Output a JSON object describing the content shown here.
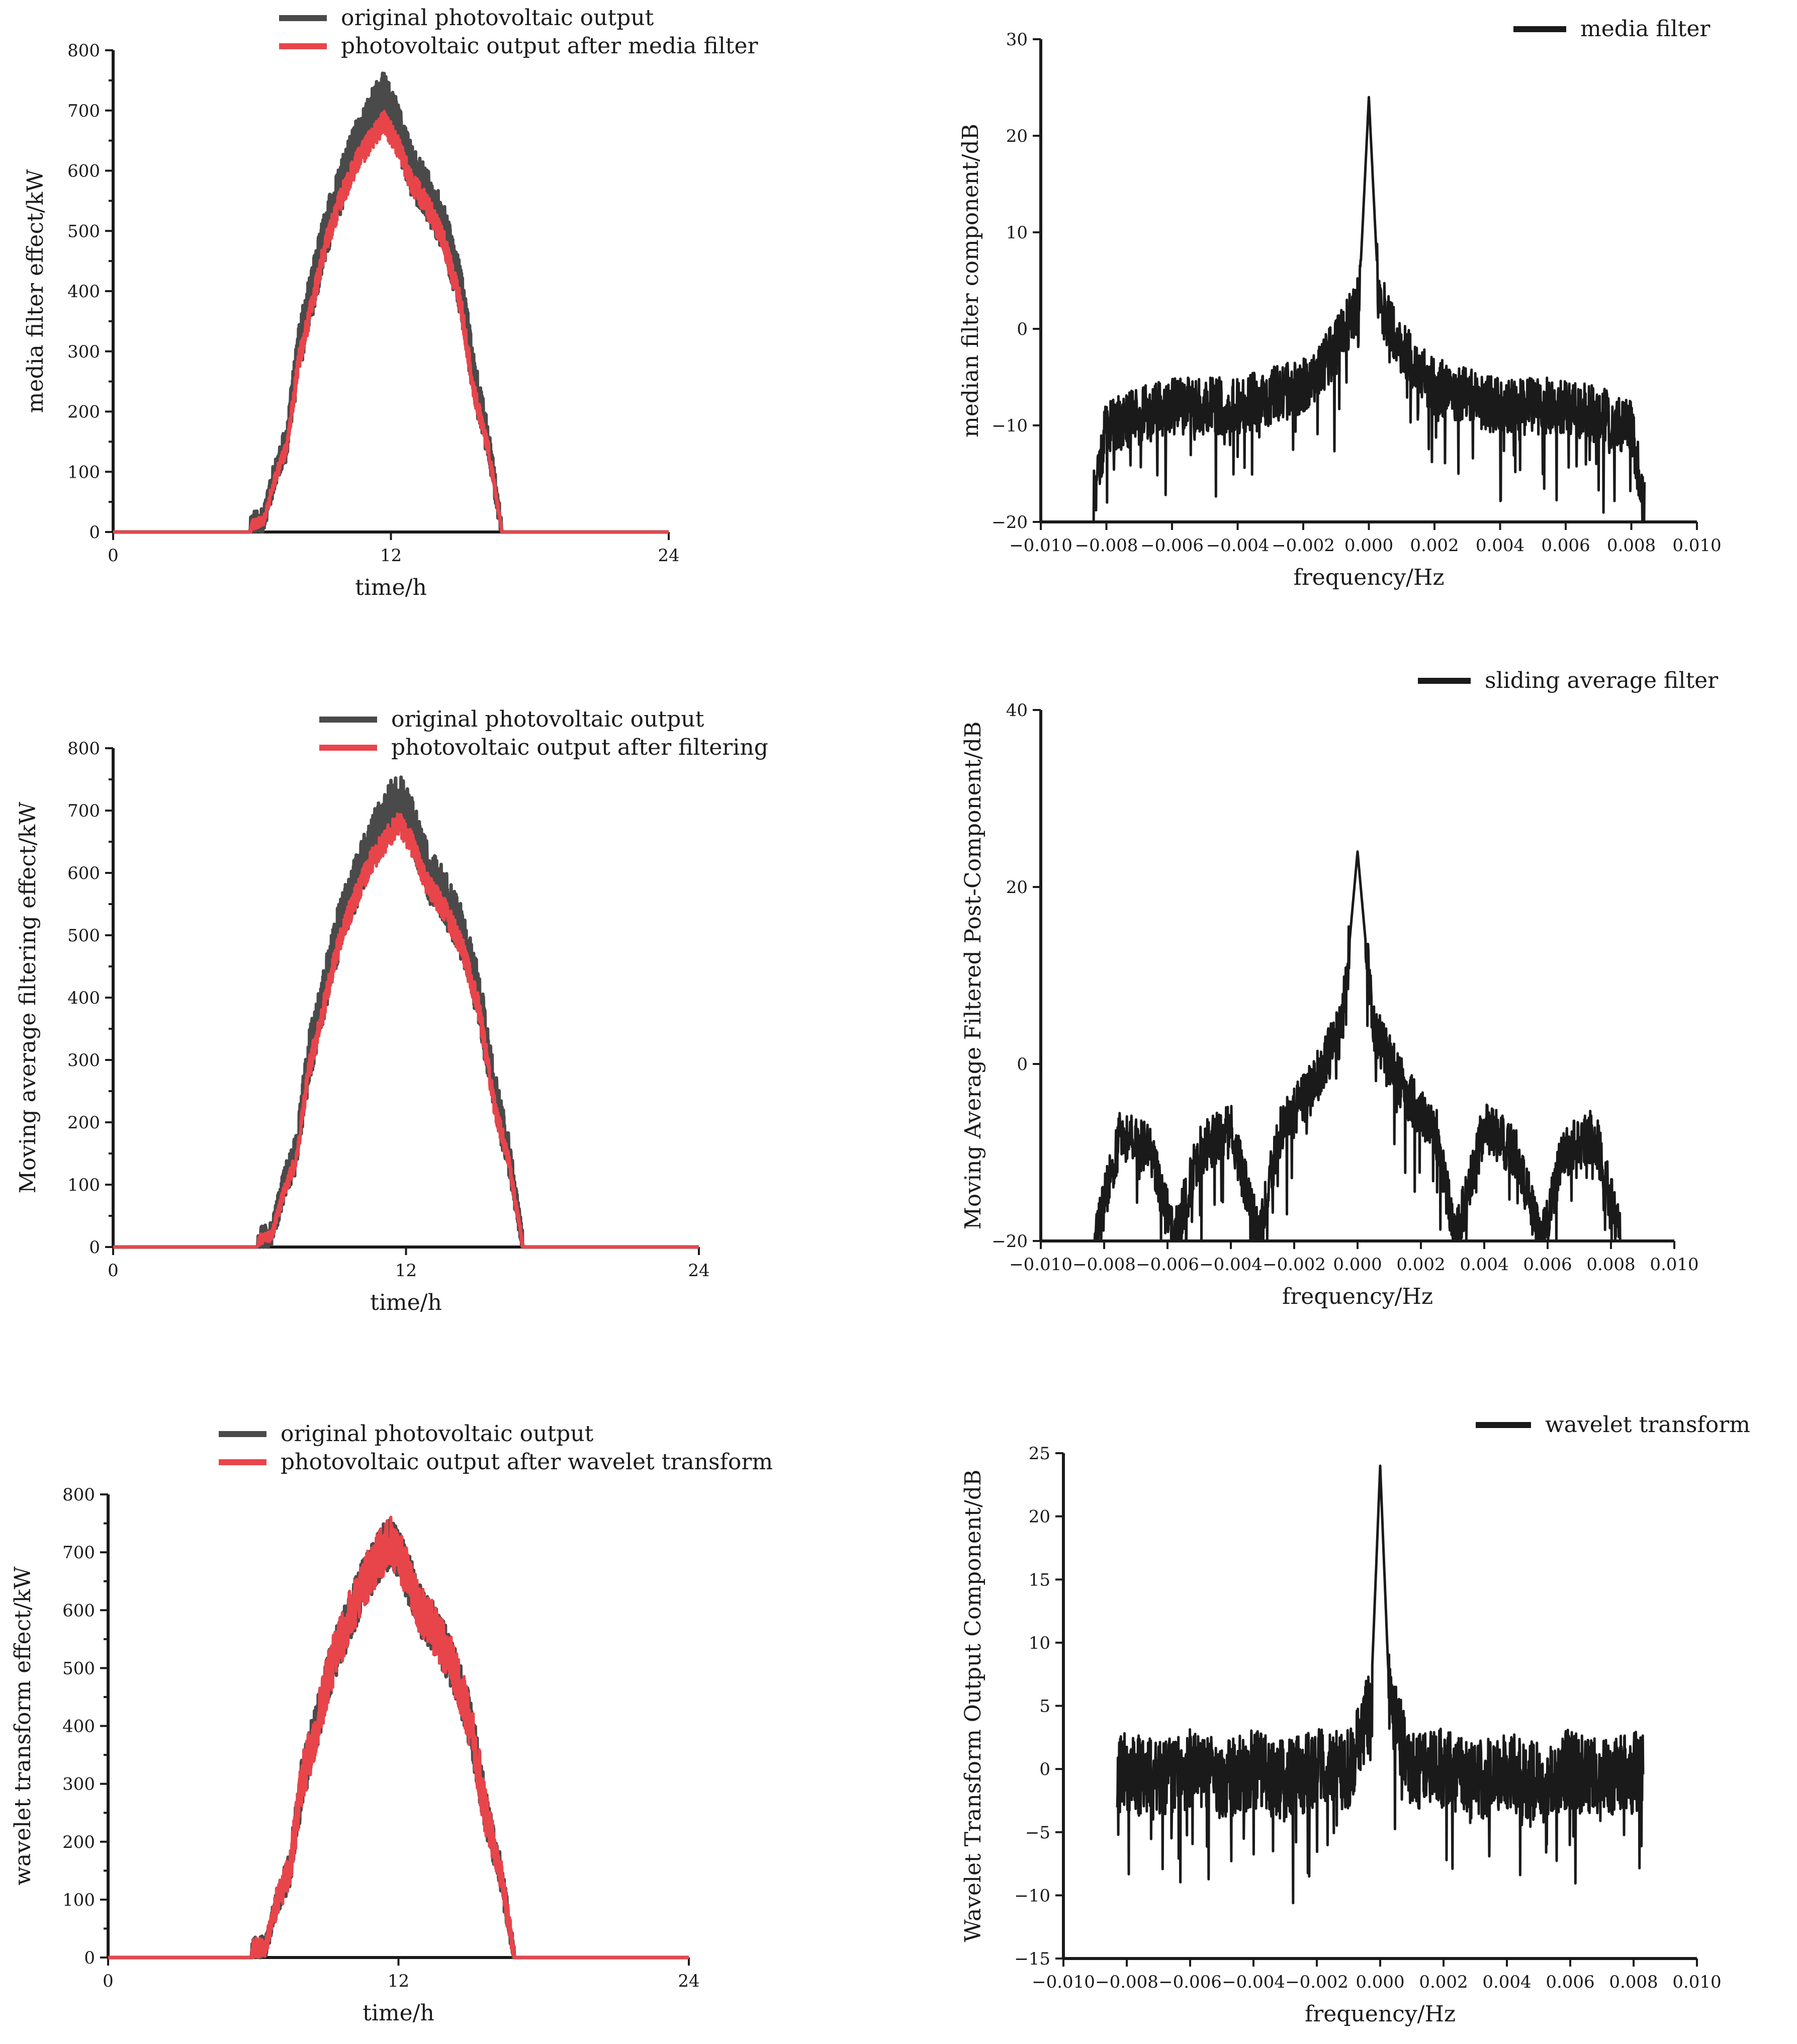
{
  "colors": {
    "original": "#4a4a4a",
    "filtered": "#e8454b",
    "spectrum": "#1a1a1a"
  },
  "chart_data": [
    {
      "type": "line",
      "title": "",
      "xlabel": "time/h",
      "ylabel": "media filter effect/kW",
      "xlim": [
        0,
        24
      ],
      "ylim": [
        0,
        800
      ],
      "xticks": [
        "0",
        "12",
        "24"
      ],
      "yticks": [
        "0",
        "100",
        "200",
        "300",
        "400",
        "500",
        "600",
        "700",
        "800"
      ],
      "legend": "top-left",
      "series": [
        {
          "name": "original photovoltaic output",
          "color": "#4a4a4a",
          "x": [
            0,
            5.9,
            6.0,
            6.5,
            7.0,
            7.5,
            8.0,
            8.6,
            9.2,
            9.9,
            10.6,
            11.3,
            11.7,
            12.2,
            12.9,
            13.6,
            14.3,
            15.0,
            15.6,
            16.2,
            16.8,
            17.5,
            24
          ],
          "values": [
            0,
            0,
            15,
            20,
            100,
            150,
            300,
            400,
            500,
            580,
            650,
            700,
            720,
            680,
            600,
            560,
            500,
            400,
            250,
            150,
            0,
            0,
            0
          ]
        },
        {
          "name": "photovoltaic output after media filter",
          "color": "#e8454b",
          "x": [
            0,
            5.9,
            6.0,
            6.5,
            7.0,
            7.5,
            8.0,
            8.6,
            9.2,
            9.9,
            10.6,
            11.3,
            11.7,
            12.2,
            12.9,
            13.6,
            14.3,
            15.0,
            15.6,
            16.2,
            16.8,
            17.5,
            24
          ],
          "values": [
            0,
            0,
            12,
            18,
            90,
            140,
            280,
            380,
            480,
            560,
            620,
            660,
            680,
            650,
            580,
            540,
            480,
            380,
            230,
            140,
            0,
            0,
            0
          ]
        }
      ]
    },
    {
      "type": "line",
      "title": "",
      "xlabel": "frequency/Hz",
      "ylabel": "median filter component/dB",
      "xlim": [
        -0.01,
        0.01
      ],
      "ylim": [
        -20,
        30
      ],
      "xticks": [
        "−0.010",
        "−0.008",
        "−0.006",
        "−0.004",
        "−0.002",
        "0.000",
        "0.002",
        "0.004",
        "0.006",
        "0.008",
        "0.010"
      ],
      "yticks": [
        "−20",
        "−10",
        "0",
        "10",
        "20",
        "30"
      ],
      "legend": "top-right",
      "series": [
        {
          "name": "media filter",
          "color": "#1a1a1a",
          "x": [
            -0.0084,
            -0.008,
            -0.007,
            -0.006,
            -0.005,
            -0.004,
            -0.003,
            -0.002,
            -0.001,
            -0.0003,
            0.0,
            0.0003,
            0.001,
            0.002,
            0.003,
            0.004,
            0.005,
            0.006,
            0.007,
            0.008,
            0.0084
          ],
          "values": [
            -18,
            -10,
            -9,
            -8,
            -8,
            -8,
            -7,
            -6,
            -2,
            3,
            24,
            3,
            -2,
            -6,
            -7,
            -8,
            -8,
            -8,
            -9,
            -10,
            -18
          ]
        }
      ]
    },
    {
      "type": "line",
      "title": "",
      "xlabel": "time/h",
      "ylabel": "Moving average filtering effect/kW",
      "xlim": [
        0,
        24
      ],
      "ylim": [
        0,
        800
      ],
      "xticks": [
        "0",
        "12",
        "24"
      ],
      "yticks": [
        "0",
        "100",
        "200",
        "300",
        "400",
        "500",
        "600",
        "700",
        "800"
      ],
      "legend": "top-left",
      "series": [
        {
          "name": "original photovoltaic output",
          "color": "#4a4a4a",
          "x": [
            0,
            5.9,
            6.0,
            6.5,
            7.0,
            7.5,
            8.0,
            8.6,
            9.2,
            9.9,
            10.6,
            11.3,
            11.7,
            12.2,
            12.9,
            13.6,
            14.3,
            15.0,
            15.6,
            16.2,
            16.8,
            17.5,
            24
          ],
          "values": [
            0,
            0,
            15,
            20,
            100,
            150,
            300,
            400,
            500,
            580,
            650,
            700,
            720,
            680,
            600,
            560,
            500,
            400,
            250,
            150,
            0,
            0,
            0
          ]
        },
        {
          "name": "photovoltaic output after filtering",
          "color": "#e8454b",
          "x": [
            0,
            5.9,
            6.0,
            6.5,
            7.0,
            7.5,
            8.0,
            8.6,
            9.2,
            9.9,
            10.6,
            11.3,
            11.7,
            12.2,
            12.9,
            13.6,
            14.3,
            15.0,
            15.6,
            16.2,
            16.8,
            17.5,
            24
          ],
          "values": [
            0,
            0,
            12,
            18,
            90,
            140,
            280,
            380,
            480,
            560,
            620,
            660,
            680,
            650,
            580,
            540,
            480,
            380,
            230,
            140,
            0,
            0,
            0
          ]
        }
      ]
    },
    {
      "type": "line",
      "title": "",
      "xlabel": "frequency/Hz",
      "ylabel": "Moving Average Filtered Post-Component/dB",
      "xlim": [
        -0.01,
        0.01
      ],
      "ylim": [
        -20,
        40
      ],
      "xticks": [
        "−0.010",
        "−0.008",
        "−0.006",
        "−0.004",
        "−0.002",
        "0.000",
        "0.002",
        "0.004",
        "0.006",
        "0.008",
        "0.010"
      ],
      "yticks": [
        "−20",
        "0",
        "20",
        "40"
      ],
      "legend": "top-right",
      "series": [
        {
          "name": "sliding average filter",
          "color": "#1a1a1a",
          "x": [
            -0.0083,
            -0.0075,
            -0.0065,
            -0.0058,
            -0.005,
            -0.004,
            -0.0031,
            -0.0025,
            -0.0015,
            -0.0005,
            0.0,
            0.0005,
            0.0015,
            0.0025,
            0.0031,
            0.004,
            0.005,
            0.0058,
            0.0065,
            0.0075,
            0.0083
          ],
          "values": [
            -20,
            -8,
            -10,
            -20,
            -10,
            -7,
            -20,
            -8,
            -3,
            4,
            24,
            4,
            -3,
            -8,
            -20,
            -7,
            -10,
            -20,
            -10,
            -8,
            -20
          ]
        }
      ]
    },
    {
      "type": "line",
      "title": "",
      "xlabel": "time/h",
      "ylabel": "wavelet transform effect/kW",
      "xlim": [
        0,
        24
      ],
      "ylim": [
        0,
        800
      ],
      "xticks": [
        "0",
        "12",
        "24"
      ],
      "yticks": [
        "0",
        "100",
        "200",
        "300",
        "400",
        "500",
        "600",
        "700",
        "800"
      ],
      "legend": "top-left",
      "series": [
        {
          "name": "original photovoltaic output",
          "color": "#4a4a4a",
          "x": [
            0,
            5.9,
            6.0,
            6.5,
            7.0,
            7.5,
            8.0,
            8.6,
            9.2,
            9.9,
            10.6,
            11.3,
            11.7,
            12.2,
            12.9,
            13.6,
            14.3,
            15.0,
            15.6,
            16.2,
            16.8,
            17.5,
            24
          ],
          "values": [
            0,
            0,
            15,
            20,
            100,
            150,
            300,
            400,
            500,
            580,
            650,
            700,
            720,
            680,
            600,
            560,
            500,
            400,
            250,
            150,
            0,
            0,
            0
          ]
        },
        {
          "name": "photovoltaic output after wavelet transform",
          "color": "#e8454b",
          "x": [
            0,
            5.9,
            6.0,
            6.5,
            7.0,
            7.5,
            8.0,
            8.6,
            9.2,
            9.9,
            10.6,
            11.3,
            11.7,
            12.2,
            12.9,
            13.6,
            14.3,
            15.0,
            15.6,
            16.2,
            16.8,
            17.5,
            24
          ],
          "values": [
            0,
            0,
            15,
            20,
            100,
            150,
            300,
            400,
            500,
            580,
            650,
            700,
            720,
            680,
            600,
            560,
            500,
            400,
            250,
            150,
            0,
            0,
            0
          ]
        }
      ]
    },
    {
      "type": "line",
      "title": "",
      "xlabel": "frequency/Hz",
      "ylabel": "Wavelet Transform Output Component/dB",
      "xlim": [
        -0.01,
        0.01
      ],
      "ylim": [
        -15,
        25
      ],
      "xticks": [
        "−0.010",
        "−0.008",
        "−0.006",
        "−0.004",
        "−0.002",
        "0.000",
        "0.002",
        "0.004",
        "0.006",
        "0.008",
        "0.010"
      ],
      "yticks": [
        "−15",
        "−10",
        "−5",
        "0",
        "5",
        "10",
        "15",
        "20",
        "25"
      ],
      "legend": "top-right",
      "series": [
        {
          "name": "wavelet transform",
          "color": "#1a1a1a",
          "x": [
            -0.0083,
            -0.007,
            -0.006,
            -0.005,
            -0.004,
            -0.003,
            -0.002,
            -0.001,
            -0.0003,
            0.0,
            0.0003,
            0.001,
            0.002,
            0.003,
            0.004,
            0.005,
            0.006,
            0.007,
            0.0083
          ],
          "values": [
            0,
            -1,
            0,
            -1,
            0,
            -1,
            0,
            0,
            5,
            24,
            5,
            0,
            0,
            -1,
            0,
            -1,
            0,
            -1,
            0
          ]
        }
      ]
    }
  ]
}
